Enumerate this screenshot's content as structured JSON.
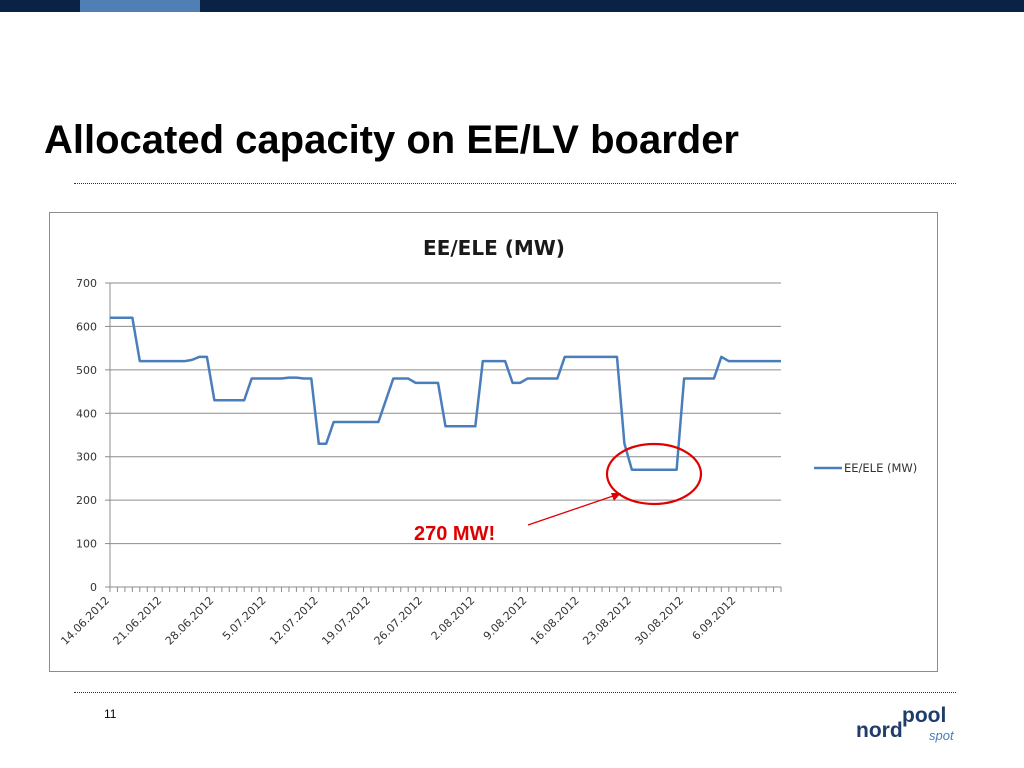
{
  "slide": {
    "title": "Allocated capacity on EE/LV boarder",
    "page_number": "11"
  },
  "logo": {
    "part1": "nord",
    "part2": "pool",
    "part3": "spot"
  },
  "annotation": {
    "text": "270 MW!",
    "color": "#e00000"
  },
  "colors": {
    "series": "#4a7ebb",
    "top_bar": "#0a2244",
    "top_bar_accent": "#4f7fb3",
    "logo_dark": "#1f3c6b",
    "logo_light": "#4a7ebb"
  },
  "chart_data": {
    "type": "line",
    "title": "EE/ELE (MW)",
    "xlabel": "",
    "ylabel": "",
    "ylim": [
      0,
      700
    ],
    "yticks": [
      0,
      100,
      200,
      300,
      400,
      500,
      600,
      700
    ],
    "grid": true,
    "legend_position": "right",
    "xtick_labels": [
      "14.06.2012",
      "21.06.2012",
      "28.06.2012",
      "5.07.2012",
      "12.07.2012",
      "19.07.2012",
      "26.07.2012",
      "2.08.2012",
      "9.08.2012",
      "16.08.2012",
      "23.08.2012",
      "30.08.2012",
      "6.09.2012"
    ],
    "x_start": "2012-06-14",
    "series": [
      {
        "name": "EE/ELE (MW)",
        "values": [
          620,
          620,
          620,
          620,
          520,
          520,
          520,
          520,
          520,
          520,
          520,
          523,
          530,
          530,
          430,
          430,
          430,
          430,
          430,
          480,
          480,
          480,
          480,
          480,
          482,
          482,
          480,
          480,
          330,
          330,
          380,
          380,
          380,
          380,
          380,
          380,
          380,
          430,
          480,
          480,
          480,
          470,
          470,
          470,
          470,
          370,
          370,
          370,
          370,
          370,
          520,
          520,
          520,
          520,
          470,
          470,
          480,
          480,
          480,
          480,
          480,
          530,
          530,
          530,
          530,
          530,
          530,
          530,
          530,
          330,
          270,
          270,
          270,
          270,
          270,
          270,
          270,
          480,
          480,
          480,
          480,
          480,
          530,
          520,
          520,
          520,
          520,
          520,
          520,
          520,
          520
        ]
      }
    ]
  }
}
